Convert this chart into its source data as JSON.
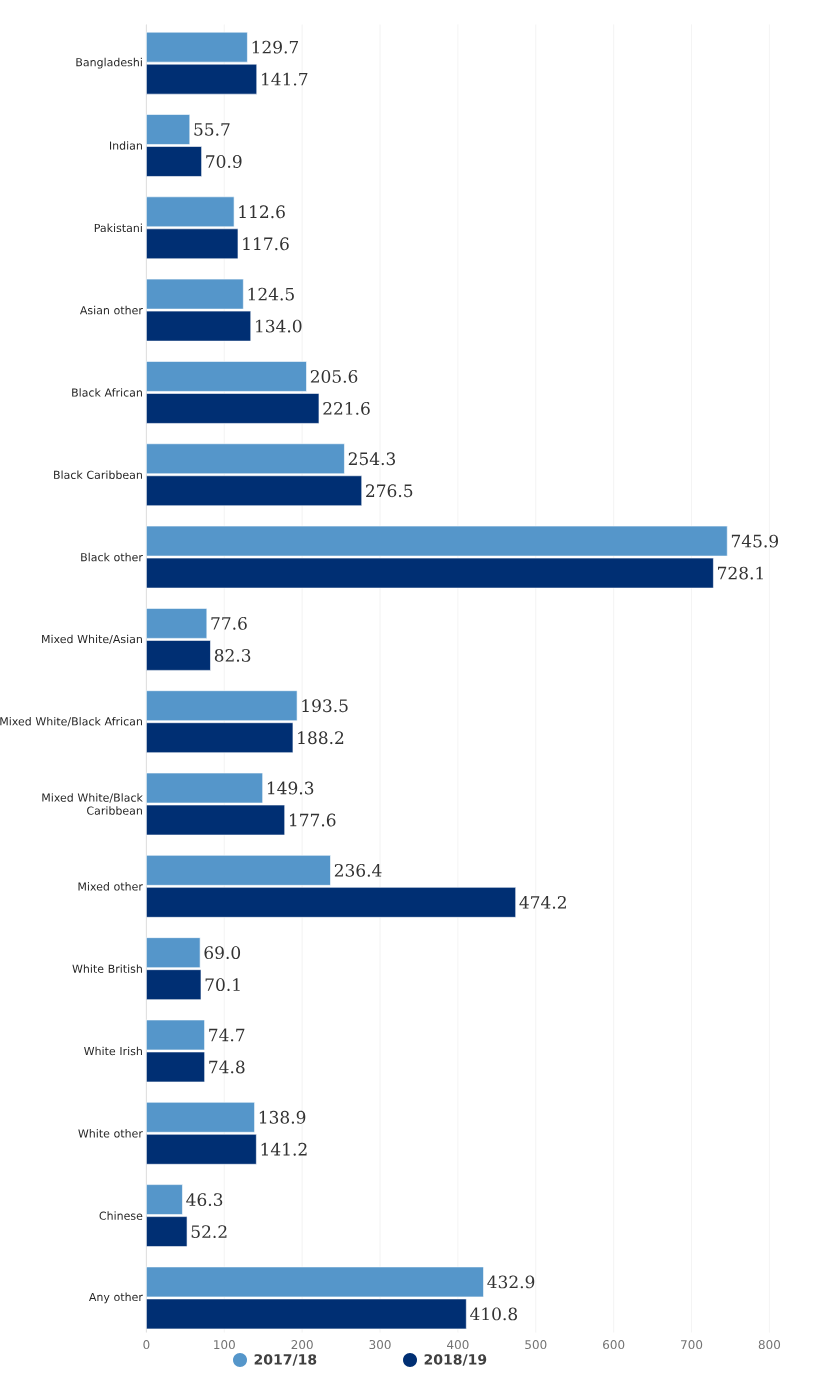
{
  "chart_data": {
    "type": "bar",
    "orientation": "horizontal",
    "categories": [
      "Bangladeshi",
      "Indian",
      "Pakistani",
      "Asian other",
      "Black African",
      "Black Caribbean",
      "Black other",
      "Mixed White/Asian",
      "Mixed White/Black African",
      "Mixed White/Black Caribbean",
      "Mixed other",
      "White British",
      "White Irish",
      "White other",
      "Chinese",
      "Any other"
    ],
    "series": [
      {
        "name": "2017/18",
        "color": "#5596ca",
        "values": [
          129.7,
          55.7,
          112.6,
          124.5,
          205.6,
          254.3,
          745.9,
          77.6,
          193.5,
          149.3,
          236.4,
          69.0,
          74.7,
          138.9,
          46.3,
          432.9
        ],
        "value_labels": [
          "129.7",
          "55.7",
          "112.6",
          "124.5",
          "205.6",
          "254.3",
          "745.9",
          "77.6",
          "193.5",
          "149.3",
          "236.4",
          "69.0",
          "74.7",
          "138.9",
          "46.3",
          "432.9"
        ]
      },
      {
        "name": "2018/19",
        "color": "#002f73",
        "values": [
          141.7,
          70.9,
          117.6,
          134.0,
          221.6,
          276.5,
          728.1,
          82.3,
          188.2,
          177.6,
          474.2,
          70.1,
          74.8,
          141.2,
          52.2,
          410.8
        ],
        "value_labels": [
          "141.7",
          "70.9",
          "117.6",
          "134.0",
          "221.6",
          "276.5",
          "728.1",
          "82.3",
          "188.2",
          "177.6",
          "474.2",
          "70.1",
          "74.8",
          "141.2",
          "52.2",
          "410.8"
        ]
      }
    ],
    "xlim": [
      0,
      800
    ],
    "xticks": [
      0,
      100,
      200,
      300,
      400,
      500,
      600,
      700,
      800
    ],
    "grid": "x",
    "legend": "bottom",
    "marker": "circle"
  }
}
